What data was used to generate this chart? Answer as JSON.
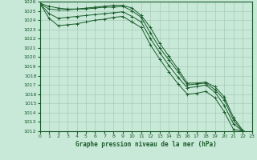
{
  "xlabel": "Graphe pression niveau de la mer (hPa)",
  "bg_color": "#c8e8d8",
  "grid_color": "#a8ccb8",
  "line_color": "#1a5c2a",
  "ylim": [
    1012,
    1026
  ],
  "xlim": [
    0,
    23
  ],
  "yticks": [
    1012,
    1013,
    1014,
    1015,
    1016,
    1017,
    1018,
    1019,
    1020,
    1021,
    1022,
    1023,
    1024,
    1025,
    1026
  ],
  "xticks": [
    0,
    1,
    2,
    3,
    4,
    5,
    6,
    7,
    8,
    9,
    10,
    11,
    12,
    13,
    14,
    15,
    16,
    17,
    18,
    19,
    20,
    21,
    22,
    23
  ],
  "lines": [
    [
      1025.8,
      1025.5,
      1025.3,
      1025.2,
      1025.2,
      1025.3,
      1025.4,
      1025.5,
      1025.6,
      1025.6,
      1025.3,
      1024.5,
      1023.2,
      1021.5,
      1020.1,
      1018.7,
      1017.2,
      1017.2,
      1017.3,
      1016.8,
      1015.7,
      1013.5,
      1012.1
    ],
    [
      1025.8,
      1025.2,
      1025.1,
      1025.1,
      1025.2,
      1025.2,
      1025.3,
      1025.4,
      1025.4,
      1025.5,
      1025.0,
      1024.3,
      1022.6,
      1021.0,
      1019.7,
      1018.4,
      1017.0,
      1017.1,
      1017.2,
      1016.5,
      1015.4,
      1013.2,
      1012.0
    ],
    [
      1025.8,
      1024.7,
      1024.2,
      1024.3,
      1024.4,
      1024.5,
      1024.6,
      1024.7,
      1024.8,
      1024.9,
      1024.4,
      1023.8,
      1022.0,
      1020.5,
      1019.1,
      1017.8,
      1016.7,
      1016.8,
      1017.0,
      1016.2,
      1014.8,
      1012.8,
      1012.0
    ],
    [
      1025.8,
      1024.2,
      1023.4,
      1023.5,
      1023.6,
      1023.8,
      1024.0,
      1024.1,
      1024.3,
      1024.4,
      1023.8,
      1023.2,
      1021.3,
      1019.8,
      1018.4,
      1017.1,
      1016.0,
      1016.1,
      1016.3,
      1015.6,
      1014.1,
      1012.2,
      1012.0
    ]
  ]
}
